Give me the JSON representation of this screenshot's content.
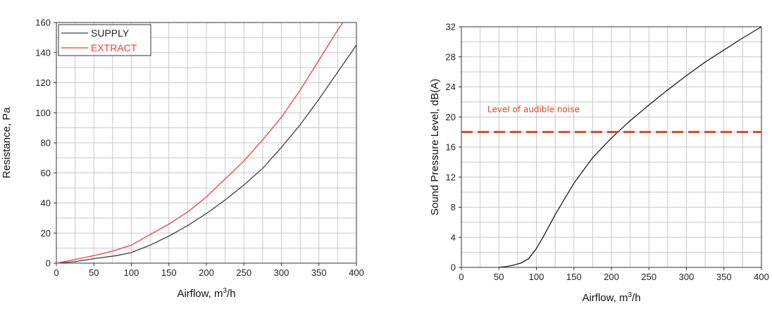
{
  "chart_data": [
    {
      "type": "line",
      "title": "",
      "xlabel": "Airflow, m³/h",
      "ylabel": "Resistance, Pa",
      "xlim": [
        0,
        400
      ],
      "ylim": [
        0,
        160
      ],
      "x_ticks": [
        0,
        50,
        100,
        150,
        200,
        250,
        300,
        350,
        400
      ],
      "y_ticks": [
        0,
        20,
        40,
        60,
        80,
        100,
        120,
        140,
        160
      ],
      "grid": true,
      "legend_position": "top-left",
      "series": [
        {
          "name": "SUPPLY",
          "color": "#404040",
          "x": [
            0,
            25,
            50,
            80,
            100,
            125,
            150,
            175,
            200,
            225,
            250,
            275,
            300,
            325,
            350,
            375,
            400
          ],
          "y": [
            0,
            1,
            3,
            5,
            7,
            12,
            18,
            25,
            33,
            42,
            52,
            63,
            77,
            92,
            109,
            127,
            145
          ]
        },
        {
          "name": "EXTRACT",
          "color": "#e8413c",
          "x": [
            0,
            25,
            50,
            75,
            100,
            125,
            150,
            175,
            200,
            225,
            250,
            275,
            300,
            325,
            350,
            375,
            382
          ],
          "y": [
            0,
            2.5,
            5,
            8,
            12,
            19,
            26,
            34,
            44,
            56,
            68,
            82,
            97,
            115,
            135,
            155,
            160
          ]
        }
      ]
    },
    {
      "type": "line",
      "title": "",
      "xlabel": "Airflow, m³/h",
      "ylabel": "Sound Pressure Level, dB(A)",
      "xlim": [
        0,
        400
      ],
      "ylim": [
        0,
        32
      ],
      "x_ticks": [
        0,
        50,
        100,
        150,
        200,
        250,
        300,
        350,
        400
      ],
      "y_ticks": [
        0,
        4,
        8,
        12,
        16,
        20,
        24,
        28,
        32
      ],
      "grid": true,
      "series": [
        {
          "color": "#1a1a1a",
          "x": [
            50,
            60,
            70,
            80,
            90,
            100,
            110,
            125,
            150,
            175,
            200,
            225,
            250,
            275,
            300,
            325,
            350,
            375,
            400
          ],
          "y": [
            0,
            0.1,
            0.3,
            0.6,
            1.2,
            2.5,
            4.2,
            7,
            11.2,
            14.6,
            17.2,
            19.5,
            21.6,
            23.6,
            25.5,
            27.3,
            28.9,
            30.5,
            32
          ]
        }
      ],
      "reference_line": {
        "y": 18,
        "color": "#d6482a",
        "label": "Level of audible noise"
      }
    }
  ]
}
